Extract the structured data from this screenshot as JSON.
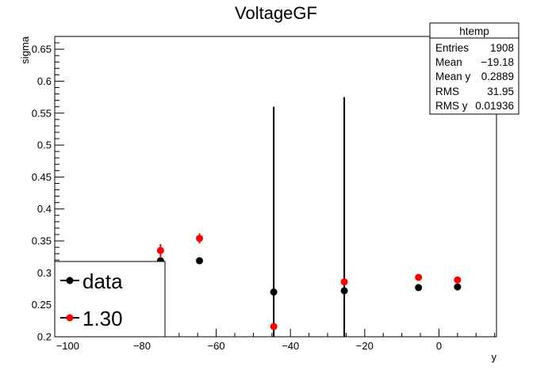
{
  "chart_data": {
    "type": "scatter",
    "title": "VoltageGF",
    "xlabel": "y",
    "ylabel": "sigma",
    "xlim": [
      -103.5,
      15.5
    ],
    "ylim": [
      0.2,
      0.67
    ],
    "x_ticks": [
      -100,
      -80,
      -60,
      -40,
      -20,
      0
    ],
    "x_tick_labels": [
      "−100",
      "−80",
      "−60",
      "−40",
      "−20",
      "0"
    ],
    "y_ticks": [
      0.2,
      0.25,
      0.3,
      0.35,
      0.4,
      0.45,
      0.5,
      0.55,
      0.6,
      0.65
    ],
    "y_tick_labels": [
      "0.2",
      "0.25",
      "0.3",
      "0.35",
      "0.4",
      "0.45",
      "0.5",
      "0.55",
      "0.6",
      "0.65"
    ],
    "grid": false,
    "series": [
      {
        "name": "data",
        "color": "#000000",
        "points": [
          {
            "x": -75.0,
            "y": 0.319,
            "err": 0.004
          },
          {
            "x": -64.5,
            "y": 0.319,
            "err": 0.003
          },
          {
            "x": -44.5,
            "y": 0.27,
            "err": 0.29
          },
          {
            "x": -25.5,
            "y": 0.272,
            "err": 0.303
          },
          {
            "x": -5.5,
            "y": 0.277,
            "err": 0.004
          },
          {
            "x": 5.0,
            "y": 0.278,
            "err": 0.004
          }
        ]
      },
      {
        "name": "1.30",
        "color": "#ff0000",
        "points": [
          {
            "x": -75.0,
            "y": 0.335,
            "err": 0.01
          },
          {
            "x": -64.5,
            "y": 0.354,
            "err": 0.008
          },
          {
            "x": -44.5,
            "y": 0.216,
            "err": 0.004
          },
          {
            "x": -25.5,
            "y": 0.286,
            "err": 0.004
          },
          {
            "x": -5.5,
            "y": 0.293,
            "err": 0.004
          },
          {
            "x": 5.0,
            "y": 0.289,
            "err": 0.004
          }
        ]
      }
    ],
    "stats_box": {
      "title": "htemp",
      "rows": [
        {
          "label": "Entries",
          "value": "1908"
        },
        {
          "label": "Mean",
          "value": "−19.18"
        },
        {
          "label": "Mean y",
          "value": "0.2889"
        },
        {
          "label": "RMS",
          "value": "31.95"
        },
        {
          "label": "RMS y",
          "value": "0.01936"
        }
      ]
    },
    "legend": {
      "placement": "bottom-left",
      "entries": [
        "data",
        "1.30"
      ]
    }
  }
}
